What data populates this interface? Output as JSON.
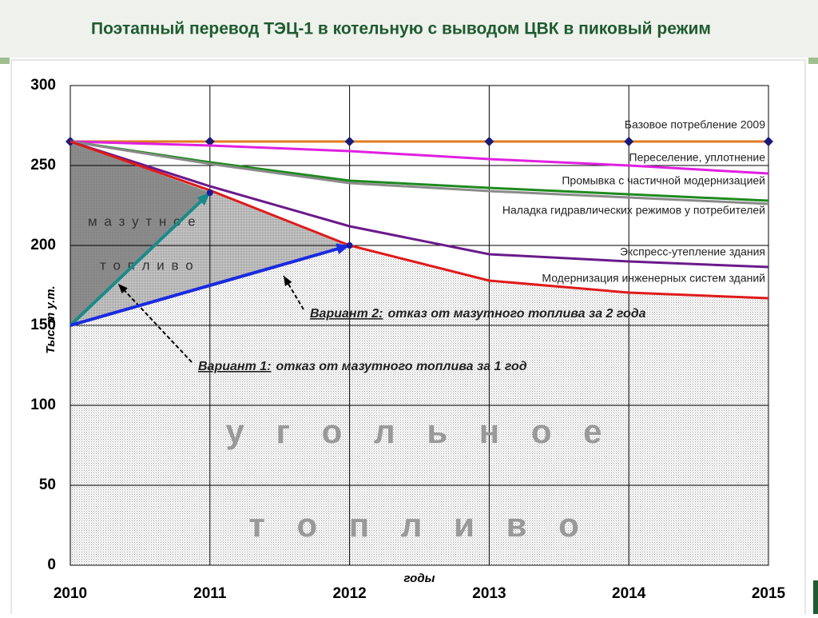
{
  "chart_data": {
    "type": "line",
    "title": "Поэтапный перевод ТЭЦ-1 в котельную с выводом ЦВК в пиковый режим",
    "x_label": "годы",
    "y_label": "Тыс. т у.т.",
    "x": [
      2010,
      2011,
      2012,
      2013,
      2014,
      2015
    ],
    "xlim": [
      2010,
      2015
    ],
    "xticks": [
      2010,
      2011,
      2012,
      2013,
      2014,
      2015
    ],
    "ylim": [
      0,
      300
    ],
    "yticks": [
      0,
      50,
      100,
      150,
      200,
      250,
      300
    ],
    "grid": true,
    "series": [
      {
        "name": "Базовое потребление  2009",
        "color": "#e07b20",
        "marker": "#1a1a7a",
        "values": [
          265,
          265,
          265,
          265,
          265,
          265
        ]
      },
      {
        "name": "Переселение, уплотнение",
        "color": "#e020e0",
        "values": [
          265,
          262.5,
          259,
          254,
          250,
          245
        ]
      },
      {
        "name": "Промывка с частичной модернизацией",
        "color": "#1e8a1e",
        "values": [
          265,
          252,
          240.5,
          236,
          232,
          228
        ]
      },
      {
        "name": "Наладка гидравлических режимов у потребителей",
        "color": "#8a8a8a",
        "values": [
          265,
          251,
          239,
          234,
          230,
          226
        ]
      },
      {
        "name": "Экспресс-утепление здания",
        "color": "#6a1a8a",
        "values": [
          265,
          237,
          212,
          194.5,
          190,
          186.5
        ]
      },
      {
        "name": "Модернизация инженерных систем зданий",
        "color": "#e01a1a",
        "values": [
          265,
          234.5,
          200,
          178,
          170.5,
          167
        ]
      }
    ],
    "arrows": [
      {
        "label_underlined": "Вариант 1:",
        "label": "отказ от мазутного топлива за 1 год",
        "x": [
          2010,
          2011
        ],
        "y": [
          150,
          233
        ],
        "color": "#1a8a8a"
      },
      {
        "label_underlined": "Вариант 2:",
        "label": "отказ от мазутного топлива за 2 года",
        "x": [
          2010,
          2012
        ],
        "y": [
          150,
          200
        ],
        "color": "#1a2ae0"
      }
    ],
    "area_labels": [
      "м а з у т н о е",
      "т о п л и в о",
      "у г о л ь н о е",
      "т о п л и в о"
    ]
  }
}
